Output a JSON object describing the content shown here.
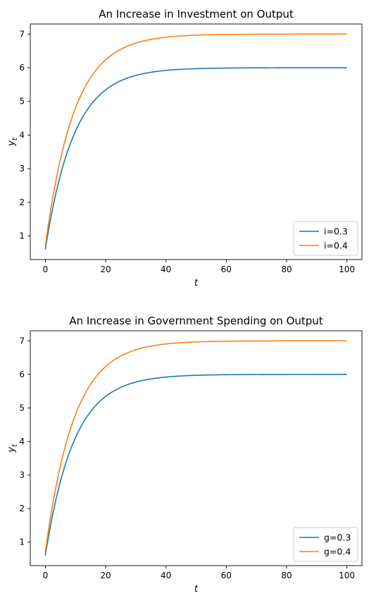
{
  "chart_data": [
    {
      "type": "line",
      "title": "An Increase in Investment on Output",
      "xlabel": "t",
      "ylabel_main": "y",
      "ylabel_sub": "t",
      "xlim": [
        -5,
        105
      ],
      "ylim": [
        0.3,
        7.3
      ],
      "xticks": [
        0,
        20,
        40,
        60,
        80,
        100
      ],
      "yticks": [
        1,
        2,
        3,
        4,
        5,
        6,
        7
      ],
      "legend": "bottom-right",
      "grid": false,
      "series": [
        {
          "name": "i=0.3",
          "color": "#1f77b4",
          "y0": 0.6,
          "steady": 6.0,
          "rate": 0.9
        },
        {
          "name": "i=0.4",
          "color": "#ff7f0e",
          "y0": 0.7,
          "steady": 7.0,
          "rate": 0.9
        }
      ]
    },
    {
      "type": "line",
      "title": "An Increase in Government Spending on Output",
      "xlabel": "t",
      "ylabel_main": "y",
      "ylabel_sub": "t",
      "xlim": [
        -5,
        105
      ],
      "ylim": [
        0.3,
        7.3
      ],
      "xticks": [
        0,
        20,
        40,
        60,
        80,
        100
      ],
      "yticks": [
        1,
        2,
        3,
        4,
        5,
        6,
        7
      ],
      "legend": "bottom-right",
      "grid": false,
      "series": [
        {
          "name": "g=0.3",
          "color": "#1f77b4",
          "y0": 0.6,
          "steady": 6.0,
          "rate": 0.9
        },
        {
          "name": "g=0.4",
          "color": "#ff7f0e",
          "y0": 0.7,
          "steady": 7.0,
          "rate": 0.9
        }
      ]
    }
  ]
}
